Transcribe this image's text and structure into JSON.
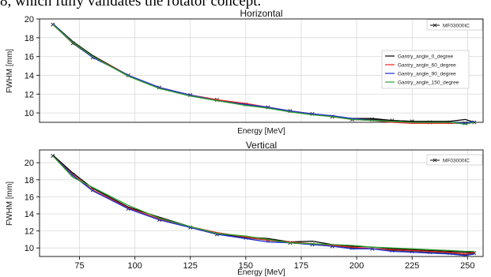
{
  "caption": "8, which fully validates the rotator concept.",
  "colors": {
    "deg0": "#000000",
    "deg60": "#e8231e",
    "deg90": "#1f2fd6",
    "deg150": "#2ea02c",
    "mf": "#333333"
  },
  "chart_data": [
    {
      "type": "line",
      "title": "Horizontal",
      "xlabel": "Energy [MeV]",
      "ylabel": "FWHM [mm]",
      "xlim": [
        57,
        257
      ],
      "ylim": [
        9,
        20
      ],
      "xticks": [],
      "yticks": [
        10,
        12,
        14,
        16,
        18,
        20
      ],
      "grid": true,
      "legends": [
        {
          "placement": "top-right",
          "entries": [
            {
              "name": "MF03000IC",
              "series": "mf"
            }
          ]
        },
        {
          "placement": "right",
          "entries": [
            {
              "name": "Gantry_angle_0_degree",
              "series": "deg0"
            },
            {
              "name": "Gantry_angle_60_degree",
              "series": "deg60"
            },
            {
              "name": "Gantry_angle_90_degree",
              "series": "deg90"
            },
            {
              "name": "Gantry_angle_150_degree",
              "series": "deg150"
            }
          ]
        }
      ],
      "x": [
        63,
        72,
        81,
        97,
        111,
        125,
        137,
        150,
        160,
        170,
        180,
        189,
        198,
        207,
        216,
        225,
        233,
        242,
        249,
        253
      ],
      "series": [
        {
          "key": "mf",
          "name": "MF03000IC",
          "marker": "x",
          "values": [
            19.4,
            17.4,
            15.9,
            14.0,
            12.7,
            11.9,
            11.4,
            10.9,
            10.6,
            10.2,
            9.9,
            9.6,
            9.3,
            9.3,
            9.2,
            9.1,
            9.0,
            9.0,
            8.9,
            9.0
          ]
        },
        {
          "key": "deg0",
          "name": "Gantry_angle_0_degree",
          "values": [
            19.5,
            17.6,
            16.1,
            14.0,
            12.7,
            11.9,
            11.4,
            10.9,
            10.6,
            10.2,
            9.9,
            9.6,
            9.4,
            9.4,
            9.2,
            9.1,
            9.1,
            9.1,
            9.3,
            9.0
          ]
        },
        {
          "key": "deg60",
          "name": "Gantry_angle_60_degree",
          "values": [
            19.4,
            17.5,
            16.0,
            14.0,
            12.7,
            11.9,
            11.4,
            11.0,
            10.6,
            10.2,
            9.9,
            9.6,
            9.3,
            9.2,
            9.0,
            8.9,
            8.9,
            8.9,
            8.9,
            9.0
          ]
        },
        {
          "key": "deg90",
          "name": "Gantry_angle_90_degree",
          "values": [
            19.5,
            17.5,
            15.9,
            14.0,
            12.7,
            11.9,
            11.3,
            10.9,
            10.6,
            10.2,
            9.9,
            9.7,
            9.4,
            9.2,
            9.1,
            9.0,
            9.0,
            9.0,
            8.9,
            9.1
          ]
        },
        {
          "key": "deg150",
          "name": "Gantry_angle_150_degree",
          "values": [
            19.4,
            17.5,
            16.0,
            13.9,
            12.6,
            11.8,
            11.3,
            10.8,
            10.5,
            10.1,
            9.8,
            9.6,
            9.3,
            9.2,
            9.1,
            9.0,
            9.0,
            9.0,
            8.8,
            9.0
          ]
        }
      ]
    },
    {
      "type": "line",
      "title": "Vertical",
      "xlabel": "Energy [MeV]",
      "ylabel": "FWHM [mm]",
      "xlim": [
        57,
        257
      ],
      "ylim": [
        9,
        21.5
      ],
      "xticks": [
        75,
        100,
        125,
        150,
        175,
        200,
        225,
        250
      ],
      "yticks": [
        10,
        12,
        14,
        16,
        18,
        20
      ],
      "grid": true,
      "legends": [
        {
          "placement": "top-right",
          "entries": [
            {
              "name": "MF03000IC",
              "series": "mf"
            }
          ]
        }
      ],
      "x": [
        63,
        72,
        81,
        97,
        111,
        125,
        137,
        150,
        160,
        170,
        180,
        189,
        198,
        207,
        216,
        225,
        233,
        242,
        249,
        253
      ],
      "series": [
        {
          "key": "mf",
          "name": "MF03000IC",
          "marker": "x",
          "values": [
            20.8,
            18.6,
            16.8,
            14.6,
            13.3,
            12.4,
            11.6,
            11.2,
            10.9,
            10.6,
            10.4,
            10.2,
            10.0,
            9.9,
            9.7,
            9.6,
            9.5,
            9.4,
            9.2,
            9.4
          ]
        },
        {
          "key": "deg0",
          "name": "Gantry_angle_0_degree",
          "values": [
            20.9,
            18.8,
            17.0,
            14.8,
            13.6,
            12.5,
            11.7,
            11.3,
            11.1,
            10.7,
            10.8,
            10.4,
            10.2,
            10.1,
            9.9,
            9.8,
            9.7,
            9.6,
            9.5,
            9.5
          ]
        },
        {
          "key": "deg60",
          "name": "Gantry_angle_60_degree",
          "values": [
            20.8,
            18.6,
            16.8,
            14.7,
            13.4,
            12.5,
            11.8,
            11.3,
            10.9,
            10.7,
            10.5,
            10.3,
            10.1,
            9.9,
            9.8,
            9.7,
            9.6,
            9.5,
            9.3,
            9.5
          ]
        },
        {
          "key": "deg90",
          "name": "Gantry_angle_90_degree",
          "values": [
            20.8,
            18.5,
            16.7,
            14.6,
            13.3,
            12.4,
            11.6,
            11.1,
            10.7,
            10.6,
            10.4,
            10.2,
            9.9,
            9.9,
            9.6,
            9.5,
            9.4,
            9.3,
            9.1,
            9.3
          ]
        },
        {
          "key": "deg150",
          "name": "Gantry_angle_150_degree",
          "values": [
            20.8,
            18.3,
            17.1,
            15.0,
            13.5,
            12.5,
            11.7,
            11.4,
            11.0,
            10.6,
            10.5,
            10.4,
            10.3,
            10.1,
            10.0,
            9.9,
            9.8,
            9.7,
            9.6,
            9.6
          ]
        }
      ]
    }
  ]
}
